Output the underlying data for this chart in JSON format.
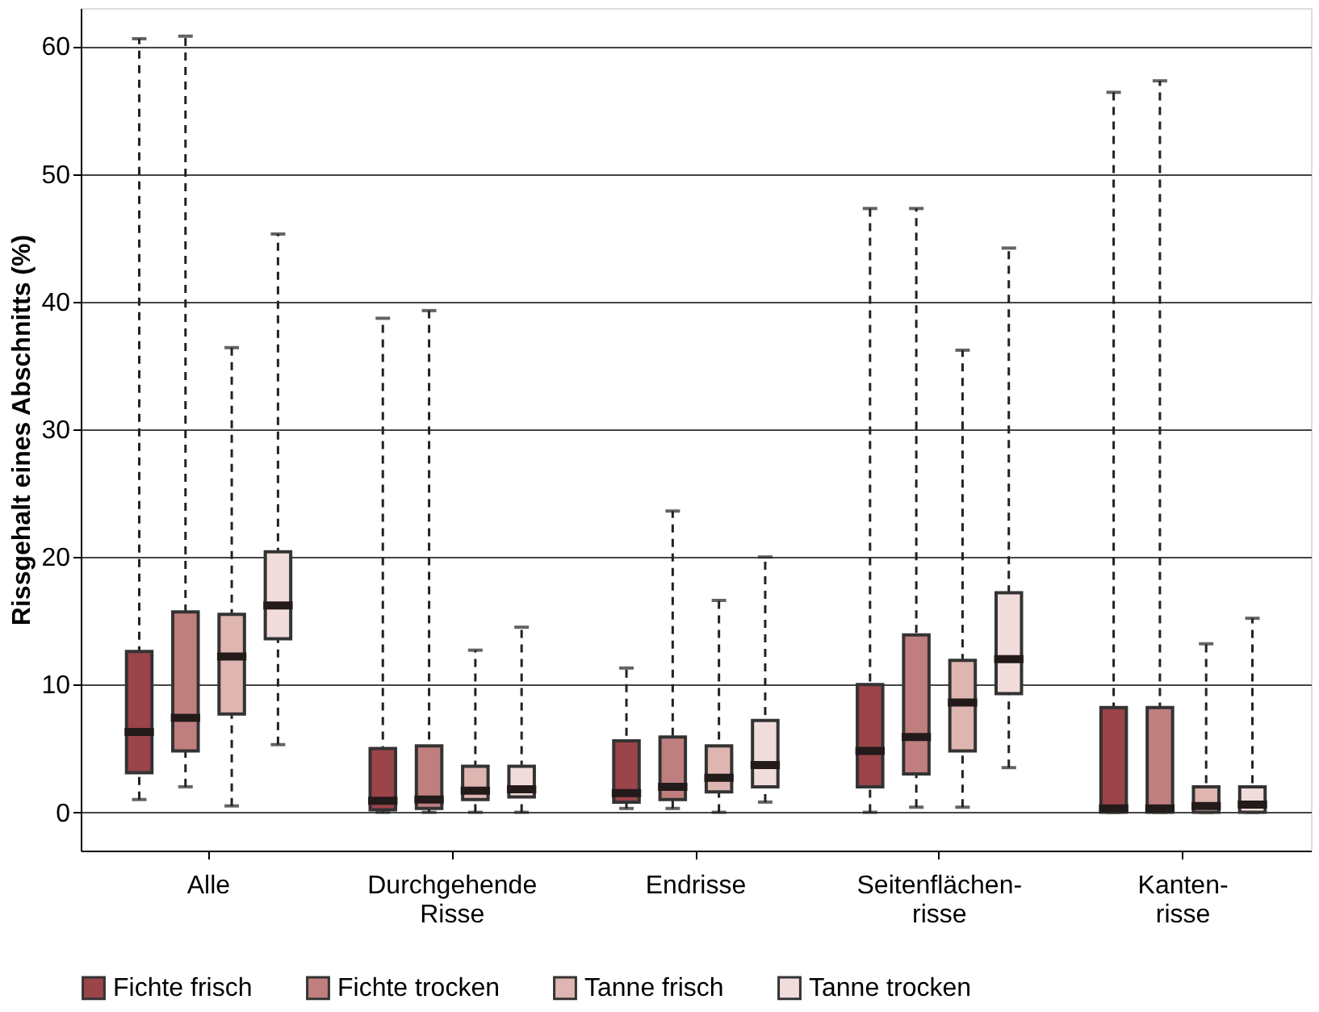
{
  "chart_data": {
    "type": "box",
    "ylabel": "Rissgehalt eines Abschnitts (%)",
    "categories": [
      "Alle",
      "Durchgehende\nRisse",
      "Endrisse",
      "Seitenflächen-\nrisse",
      "Kanten-\nrisse"
    ],
    "ylim": [
      -3,
      63
    ],
    "yticks": [
      0,
      10,
      20,
      30,
      40,
      50,
      60
    ],
    "grid": "y",
    "legend": "bottom",
    "series": [
      {
        "name": "Fichte frisch",
        "color": "#9b4449",
        "boxes": [
          {
            "low": 1.0,
            "q1": 3.1,
            "median": 6.3,
            "q3": 12.6,
            "high": 60.6
          },
          {
            "low": 0,
            "q1": 0.2,
            "median": 0.9,
            "q3": 5.0,
            "high": 38.7
          },
          {
            "low": 0.3,
            "q1": 0.8,
            "median": 1.5,
            "q3": 5.6,
            "high": 11.3
          },
          {
            "low": 0,
            "q1": 2.0,
            "median": 4.8,
            "q3": 10.0,
            "high": 47.3
          },
          {
            "low": 0,
            "q1": 0,
            "median": 0.3,
            "q3": 8.2,
            "high": 56.4
          }
        ]
      },
      {
        "name": "Fichte trocken",
        "color": "#c07f7f",
        "boxes": [
          {
            "low": 2.0,
            "q1": 4.8,
            "median": 7.4,
            "q3": 15.7,
            "high": 60.8
          },
          {
            "low": 0,
            "q1": 0.3,
            "median": 1.0,
            "q3": 5.2,
            "high": 39.3
          },
          {
            "low": 0.3,
            "q1": 1.0,
            "median": 2.0,
            "q3": 5.9,
            "high": 23.6
          },
          {
            "low": 0.4,
            "q1": 3.0,
            "median": 5.9,
            "q3": 13.9,
            "high": 47.3
          },
          {
            "low": 0,
            "q1": 0,
            "median": 0.3,
            "q3": 8.2,
            "high": 57.3
          }
        ]
      },
      {
        "name": "Tanne frisch",
        "color": "#deb5b0",
        "boxes": [
          {
            "low": 0.5,
            "q1": 7.7,
            "median": 12.2,
            "q3": 15.5,
            "high": 36.4
          },
          {
            "low": 0,
            "q1": 1.0,
            "median": 1.7,
            "q3": 3.6,
            "high": 12.7
          },
          {
            "low": 0,
            "q1": 1.6,
            "median": 2.7,
            "q3": 5.2,
            "high": 16.6
          },
          {
            "low": 0.4,
            "q1": 4.8,
            "median": 8.6,
            "q3": 11.9,
            "high": 36.2
          },
          {
            "low": 0,
            "q1": 0,
            "median": 0.5,
            "q3": 2.0,
            "high": 13.2
          }
        ]
      },
      {
        "name": "Tanne trocken",
        "color": "#f0dcda",
        "boxes": [
          {
            "low": 5.3,
            "q1": 13.6,
            "median": 16.2,
            "q3": 20.4,
            "high": 45.3
          },
          {
            "low": 0,
            "q1": 1.2,
            "median": 1.8,
            "q3": 3.6,
            "high": 14.5
          },
          {
            "low": 0.8,
            "q1": 2.0,
            "median": 3.7,
            "q3": 7.2,
            "high": 20.0
          },
          {
            "low": 3.5,
            "q1": 9.3,
            "median": 12.0,
            "q3": 17.2,
            "high": 44.2
          },
          {
            "low": 0,
            "q1": 0,
            "median": 0.6,
            "q3": 2.0,
            "high": 15.2
          }
        ]
      }
    ]
  }
}
